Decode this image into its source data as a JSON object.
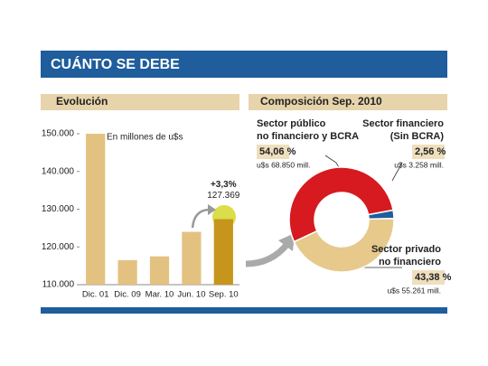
{
  "header": {
    "title": "CUÁNTO SE DEBE"
  },
  "chart_data": [
    {
      "type": "bar",
      "title": "Evolución",
      "subtitle": "En millones de u$s",
      "annotation": "+3,3%",
      "categories": [
        "Dic. 01",
        "Dic. 09",
        "Mar. 10",
        "Jun. 10",
        "Sep. 10"
      ],
      "values": [
        150000,
        116500,
        117500,
        124000,
        127369
      ],
      "value_labels": [
        null,
        null,
        null,
        null,
        "127.369"
      ],
      "colors": [
        "#e3c281",
        "#e3c281",
        "#e3c281",
        "#e3c281",
        "#c8951c"
      ],
      "ylim": [
        110000,
        150000
      ],
      "yticks": [
        {
          "value": 110000,
          "label": "110.000"
        },
        {
          "value": 120000,
          "label": "120.000"
        },
        {
          "value": 130000,
          "label": "130.000"
        },
        {
          "value": 140000,
          "label": "140.000"
        },
        {
          "value": 150000,
          "label": "150.000"
        }
      ]
    },
    {
      "type": "pie",
      "title": "Composición Sep. 2010",
      "categories": [
        [
          "Sector público",
          "no financiero y BCRA"
        ],
        [
          "Sector financiero",
          "(Sin BCRA)"
        ],
        [
          "Sector privado",
          "no financiero"
        ]
      ],
      "values": [
        54.06,
        2.56,
        43.38
      ],
      "value_labels": [
        "54,06 %",
        "2,56 %",
        "43,38 %"
      ],
      "notes": [
        "u$s 68.850 mill.",
        "u$s 3.258 mill.",
        "u$s 55.261 mill."
      ],
      "colors": [
        "#d71920",
        "#1e5e9e",
        "#e6c98b"
      ]
    }
  ]
}
